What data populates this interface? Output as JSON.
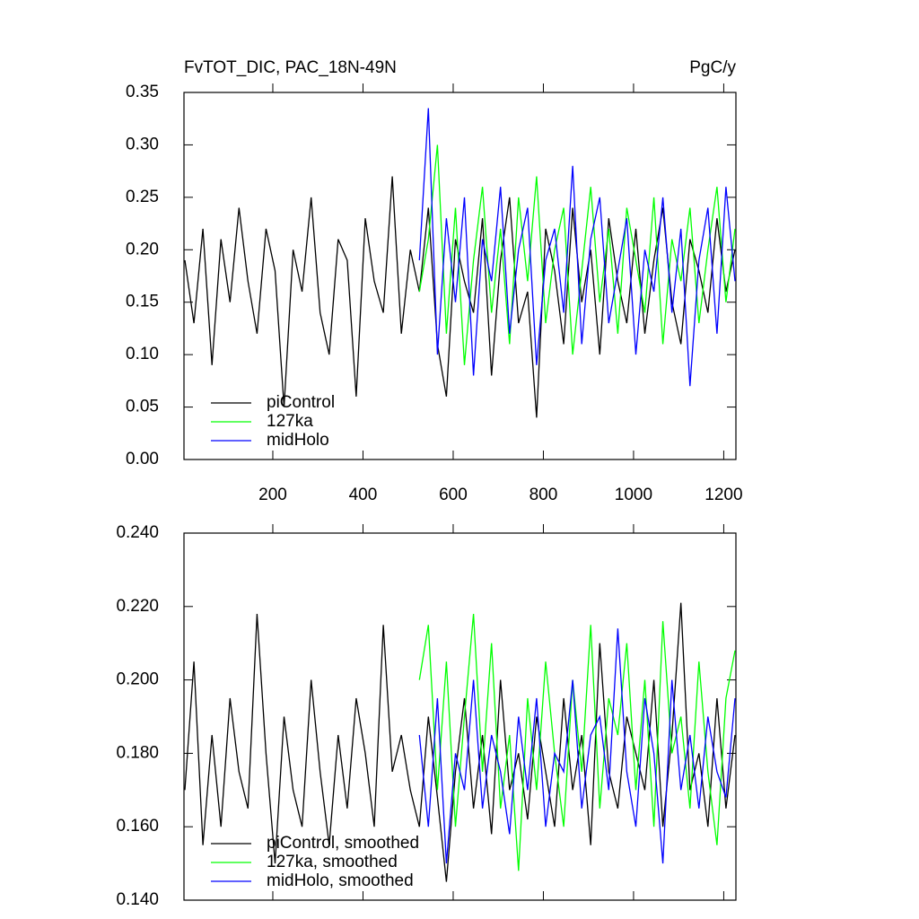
{
  "chart_data": [
    {
      "type": "line",
      "title": "FvTOT_DIC, PAC_18N-49N",
      "units": "PgC/y",
      "x": [
        5,
        25,
        45,
        65,
        85,
        105,
        125,
        145,
        165,
        185,
        205,
        225,
        245,
        265,
        285,
        305,
        325,
        345,
        365,
        385,
        405,
        425,
        445,
        465,
        485,
        505,
        525,
        545,
        565,
        585,
        605,
        625,
        645,
        665,
        685,
        705,
        725,
        745,
        765,
        785,
        805,
        825,
        845,
        865,
        885,
        905,
        925,
        945,
        965,
        985,
        1005,
        1025,
        1045,
        1065,
        1085,
        1105,
        1125,
        1145,
        1165,
        1185,
        1205,
        1225
      ],
      "xlim": [
        3,
        1227
      ],
      "xticks": [
        200,
        400,
        600,
        800,
        1000,
        1200
      ],
      "ylim": [
        0,
        0.35
      ],
      "yticks": [
        {
          "value": 0,
          "label": "0.00"
        },
        {
          "value": 0.05,
          "label": "0.05"
        },
        {
          "value": 0.1,
          "label": "0.10"
        },
        {
          "value": 0.15,
          "label": "0.15"
        },
        {
          "value": 0.2,
          "label": "0.20"
        },
        {
          "value": 0.25,
          "label": "0.25"
        },
        {
          "value": 0.3,
          "label": "0.30"
        },
        {
          "value": 0.35,
          "label": "0.35"
        }
      ],
      "legend": "lower left",
      "series": [
        {
          "name": "piControl",
          "color": "#000000",
          "values": [
            0.19,
            0.13,
            0.22,
            0.09,
            0.21,
            0.15,
            0.24,
            0.17,
            0.12,
            0.22,
            0.18,
            0.05,
            0.2,
            0.16,
            0.25,
            0.14,
            0.1,
            0.21,
            0.19,
            0.06,
            0.23,
            0.17,
            0.14,
            0.27,
            0.12,
            0.2,
            0.16,
            0.24,
            0.11,
            0.06,
            0.21,
            0.17,
            0.14,
            0.23,
            0.08,
            0.19,
            0.25,
            0.13,
            0.16,
            0.04,
            0.22,
            0.18,
            0.11,
            0.24,
            0.15,
            0.2,
            0.1,
            0.23,
            0.17,
            0.13,
            0.22,
            0.12,
            0.19,
            0.24,
            0.15,
            0.11,
            0.21,
            0.18,
            0.14,
            0.23,
            0.16,
            0.2
          ]
        },
        {
          "name": "127ka",
          "color": "#00ff00",
          "values": [
            null,
            null,
            null,
            null,
            null,
            null,
            null,
            null,
            null,
            null,
            null,
            null,
            null,
            null,
            null,
            null,
            null,
            null,
            null,
            null,
            null,
            null,
            null,
            null,
            null,
            null,
            0.16,
            0.21,
            0.3,
            0.12,
            0.24,
            0.09,
            0.19,
            0.26,
            0.14,
            0.22,
            0.11,
            0.25,
            0.17,
            0.27,
            0.13,
            0.2,
            0.24,
            0.1,
            0.18,
            0.26,
            0.15,
            0.22,
            0.12,
            0.24,
            0.19,
            0.14,
            0.25,
            0.11,
            0.21,
            0.17,
            0.24,
            0.13,
            0.2,
            0.26,
            0.15,
            0.22
          ]
        },
        {
          "name": "midHolo",
          "color": "#0000ff",
          "values": [
            null,
            null,
            null,
            null,
            null,
            null,
            null,
            null,
            null,
            null,
            null,
            null,
            null,
            null,
            null,
            null,
            null,
            null,
            null,
            null,
            null,
            null,
            null,
            null,
            null,
            null,
            0.19,
            0.335,
            0.1,
            0.23,
            0.15,
            0.25,
            0.08,
            0.21,
            0.17,
            0.26,
            0.12,
            0.2,
            0.24,
            0.09,
            0.19,
            0.22,
            0.14,
            0.28,
            0.11,
            0.21,
            0.25,
            0.13,
            0.18,
            0.23,
            0.1,
            0.2,
            0.16,
            0.25,
            0.14,
            0.22,
            0.07,
            0.19,
            0.24,
            0.12,
            0.26,
            0.17
          ]
        }
      ]
    },
    {
      "type": "line",
      "x": [
        5,
        25,
        45,
        65,
        85,
        105,
        125,
        145,
        165,
        185,
        205,
        225,
        245,
        265,
        285,
        305,
        325,
        345,
        365,
        385,
        405,
        425,
        445,
        465,
        485,
        505,
        525,
        545,
        565,
        585,
        605,
        625,
        645,
        665,
        685,
        705,
        725,
        745,
        765,
        785,
        805,
        825,
        845,
        865,
        885,
        905,
        925,
        945,
        965,
        985,
        1005,
        1025,
        1045,
        1065,
        1085,
        1105,
        1125,
        1145,
        1165,
        1185,
        1205,
        1225
      ],
      "xlim": [
        3,
        1227
      ],
      "ylim": [
        0.14,
        0.24
      ],
      "yticks": [
        {
          "value": 0.14,
          "label": "0.140"
        },
        {
          "value": 0.16,
          "label": "0.160"
        },
        {
          "value": 0.18,
          "label": "0.180"
        },
        {
          "value": 0.2,
          "label": "0.200"
        },
        {
          "value": 0.22,
          "label": "0.220"
        },
        {
          "value": 0.24,
          "label": "0.240"
        }
      ],
      "legend": "lower left",
      "series": [
        {
          "name": "piControl, smoothed",
          "color": "#000000",
          "values": [
            0.17,
            0.205,
            0.155,
            0.185,
            0.16,
            0.195,
            0.175,
            0.165,
            0.218,
            0.18,
            0.15,
            0.19,
            0.17,
            0.16,
            0.2,
            0.175,
            0.155,
            0.185,
            0.165,
            0.195,
            0.18,
            0.16,
            0.215,
            0.175,
            0.185,
            0.17,
            0.16,
            0.19,
            0.168,
            0.145,
            0.175,
            0.195,
            0.165,
            0.185,
            0.158,
            0.2,
            0.17,
            0.18,
            0.162,
            0.19,
            0.175,
            0.16,
            0.195,
            0.17,
            0.185,
            0.155,
            0.21,
            0.175,
            0.165,
            0.19,
            0.18,
            0.17,
            0.2,
            0.16,
            0.185,
            0.221,
            0.17,
            0.18,
            0.16,
            0.195,
            0.165,
            0.185
          ]
        },
        {
          "name": "127ka, smoothed",
          "color": "#00ff00",
          "values": [
            null,
            null,
            null,
            null,
            null,
            null,
            null,
            null,
            null,
            null,
            null,
            null,
            null,
            null,
            null,
            null,
            null,
            null,
            null,
            null,
            null,
            null,
            null,
            null,
            null,
            null,
            0.2,
            0.215,
            0.17,
            0.205,
            0.16,
            0.19,
            0.218,
            0.175,
            0.21,
            0.165,
            0.185,
            0.148,
            0.195,
            0.17,
            0.205,
            0.18,
            0.16,
            0.2,
            0.175,
            0.215,
            0.165,
            0.195,
            0.185,
            0.21,
            0.17,
            0.2,
            0.16,
            0.216,
            0.18,
            0.19,
            0.165,
            0.205,
            0.175,
            0.155,
            0.195,
            0.208
          ]
        },
        {
          "name": "midHolo, smoothed",
          "color": "#0000ff",
          "values": [
            null,
            null,
            null,
            null,
            null,
            null,
            null,
            null,
            null,
            null,
            null,
            null,
            null,
            null,
            null,
            null,
            null,
            null,
            null,
            null,
            null,
            null,
            null,
            null,
            null,
            null,
            0.185,
            0.16,
            0.195,
            0.15,
            0.18,
            0.17,
            0.2,
            0.165,
            0.185,
            0.175,
            0.158,
            0.19,
            0.17,
            0.195,
            0.16,
            0.18,
            0.175,
            0.2,
            0.165,
            0.185,
            0.19,
            0.17,
            0.214,
            0.175,
            0.16,
            0.195,
            0.18,
            0.15,
            0.2,
            0.17,
            0.185,
            0.165,
            0.19,
            0.175,
            0.168,
            0.195
          ]
        }
      ]
    }
  ]
}
